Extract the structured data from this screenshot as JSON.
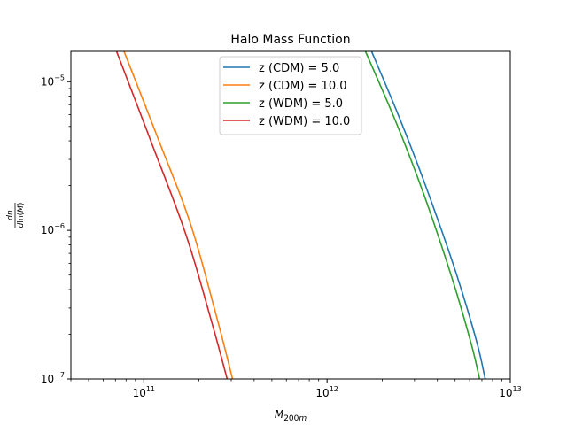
{
  "chart_data": {
    "type": "line",
    "title": "Halo Mass Function",
    "xlabel": "M_{200m}",
    "ylabel": "dn / d ln(M)",
    "xscale": "log",
    "yscale": "log",
    "xlim": [
      40000000000.0,
      10000000000000.0
    ],
    "ylim": [
      1e-07,
      1.6e-05
    ],
    "grid": false,
    "legend_position": "top-center",
    "x_major_ticks": [
      {
        "value": 100000000000.0,
        "base": "10",
        "exp": "11"
      },
      {
        "value": 1000000000000.0,
        "base": "10",
        "exp": "12"
      },
      {
        "value": 10000000000000.0,
        "base": "10",
        "exp": "13"
      }
    ],
    "y_major_ticks": [
      {
        "value": 1e-07,
        "base": "10",
        "exp": "−7"
      },
      {
        "value": 1e-06,
        "base": "10",
        "exp": "−6"
      },
      {
        "value": 1e-05,
        "base": "10",
        "exp": "−5"
      }
    ],
    "series": [
      {
        "name": "z (CDM) = 5.0",
        "color": "#1f77b4",
        "x": [
          1750000000000.0,
          2500000000000.0,
          3500000000000.0,
          5000000000000.0,
          6500000000000.0,
          7300000000000.0
        ],
        "y": [
          1.6e-05,
          5.6e-06,
          1.9e-06,
          5.4e-07,
          1.85e-07,
          1e-07
        ]
      },
      {
        "name": "z (CDM) = 10.0",
        "color": "#ff7f0e",
        "x": [
          78000000000.0,
          120000000000.0,
          180000000000.0,
          250000000000.0,
          305000000000.0
        ],
        "y": [
          1.6e-05,
          4.1e-06,
          1.1e-06,
          2.6e-07,
          1e-07
        ]
      },
      {
        "name": "z (WDM) = 5.0",
        "color": "#2ca02c",
        "x": [
          1620000000000.0,
          2400000000000.0,
          3400000000000.0,
          4800000000000.0,
          6100000000000.0,
          6800000000000.0
        ],
        "y": [
          1.6e-05,
          5.2e-06,
          1.7e-06,
          4.8e-07,
          1.75e-07,
          1e-07
        ]
      },
      {
        "name": "z (WDM) = 10.0",
        "color": "#d62728",
        "x": [
          71000000000.0,
          110000000000.0,
          170000000000.0,
          235000000000.0,
          285000000000.0
        ],
        "y": [
          1.6e-05,
          3.9e-06,
          9.3e-07,
          2.4e-07,
          1e-07
        ]
      }
    ]
  }
}
